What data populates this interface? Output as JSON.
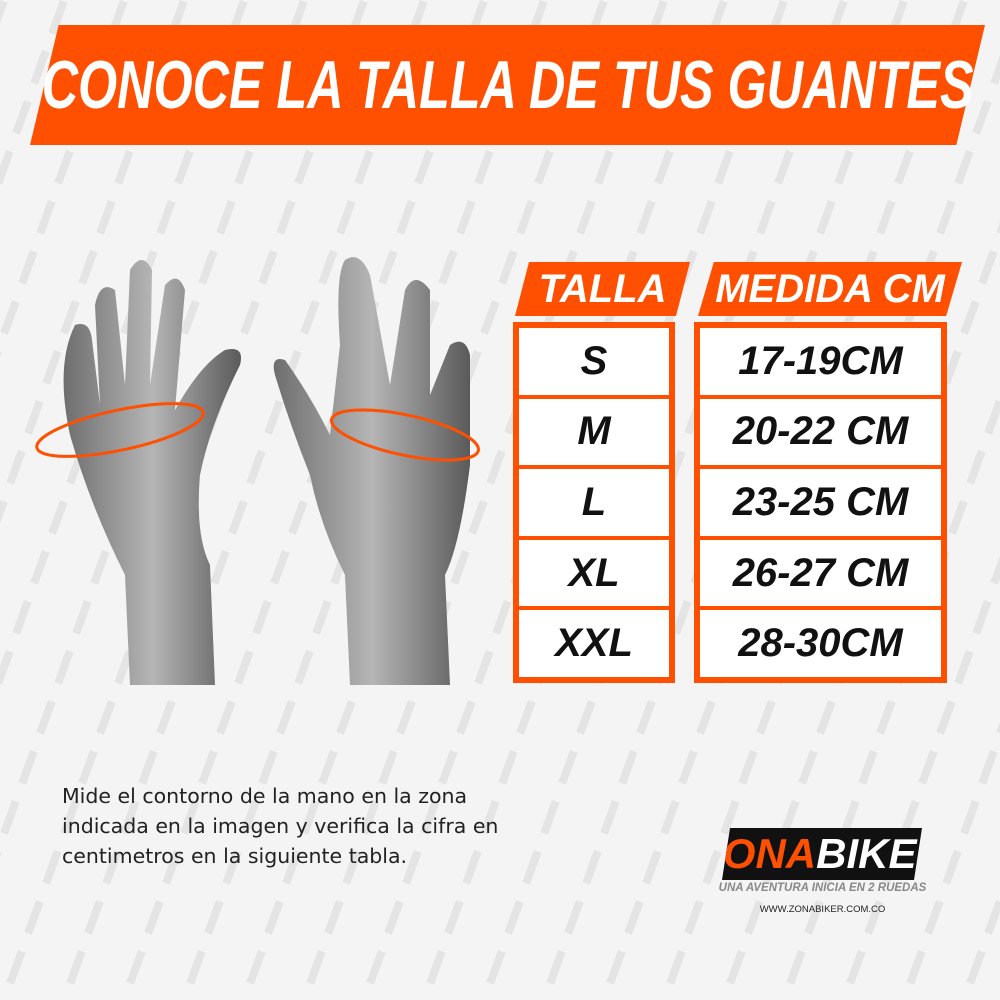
{
  "title": "CONOCE LA TALLA DE TUS GUANTES",
  "table": {
    "headers": {
      "size": "TALLA",
      "measure": "MEDIDA CM"
    },
    "rows": [
      {
        "size": "S",
        "measure": "17-19CM"
      },
      {
        "size": "M",
        "measure": "20-22 CM"
      },
      {
        "size": "L",
        "measure": "23-25 CM"
      },
      {
        "size": "XL",
        "measure": "26-27 CM"
      },
      {
        "size": "XXL",
        "measure": "28-30CM"
      }
    ]
  },
  "description": "Mide el contorno de la mano en la zona indicada en la imagen y verifica la cifra en centimetros en la siguiente tabla.",
  "logo": {
    "part1": "ZONA",
    "part2": "BIKER",
    "tagline": "UNA AVENTURA INICIA EN 2 RUEDAS",
    "url": "WWW.ZONABIKER.COM.CO"
  },
  "watermark": "WWW.ZONABIKER.COM.CO",
  "colors": {
    "accent": "#ff4f00",
    "logo_bg": "#111111",
    "hand": "#8a8a8a"
  }
}
